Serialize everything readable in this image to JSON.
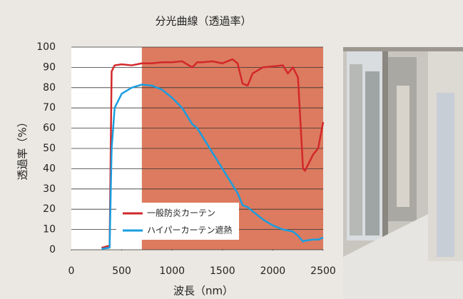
{
  "chart_data": {
    "type": "line",
    "title": "分光曲線（透過率）",
    "xlabel": "波長（nm）",
    "ylabel": "透過率（%）",
    "x": [
      300,
      380,
      400,
      430,
      500,
      600,
      700,
      800,
      900,
      1000,
      1100,
      1200,
      1250,
      1300,
      1400,
      1500,
      1600,
      1650,
      1700,
      1750,
      1800,
      1900,
      2000,
      2100,
      2150,
      2200,
      2250,
      2300,
      2320,
      2400,
      2450,
      2500
    ],
    "series": [
      {
        "name": "一般防炎カーテン",
        "color": "#d2282b",
        "values": [
          1,
          2,
          88,
          91,
          91.5,
          91,
          92,
          92,
          92.5,
          92.5,
          93,
          90,
          92.5,
          92.5,
          93,
          92,
          94,
          92,
          82,
          81,
          87,
          90,
          90.5,
          91,
          87,
          90,
          85,
          40,
          39,
          47,
          50,
          63
        ]
      },
      {
        "name": "ハイパーカーテン遮熱",
        "color": "#1a9de0",
        "values": [
          0.5,
          1,
          50,
          70,
          77,
          80,
          81.5,
          81,
          79,
          75,
          70,
          62,
          60,
          56,
          48,
          40,
          32,
          28,
          22,
          21,
          19,
          15,
          12,
          10,
          9.5,
          9,
          7,
          4,
          4.5,
          5,
          5,
          6
        ]
      }
    ],
    "highlight_xrange": [
      700,
      2500
    ],
    "highlight_color": "#dc7b5f",
    "xlim": [
      0,
      2500
    ],
    "xticks": [
      0,
      500,
      1000,
      1500,
      2000,
      2500
    ],
    "ylim": [
      0,
      100
    ],
    "yticks": [
      0,
      10,
      20,
      30,
      40,
      50,
      60,
      70,
      80,
      90,
      100
    ],
    "grid": true
  }
}
